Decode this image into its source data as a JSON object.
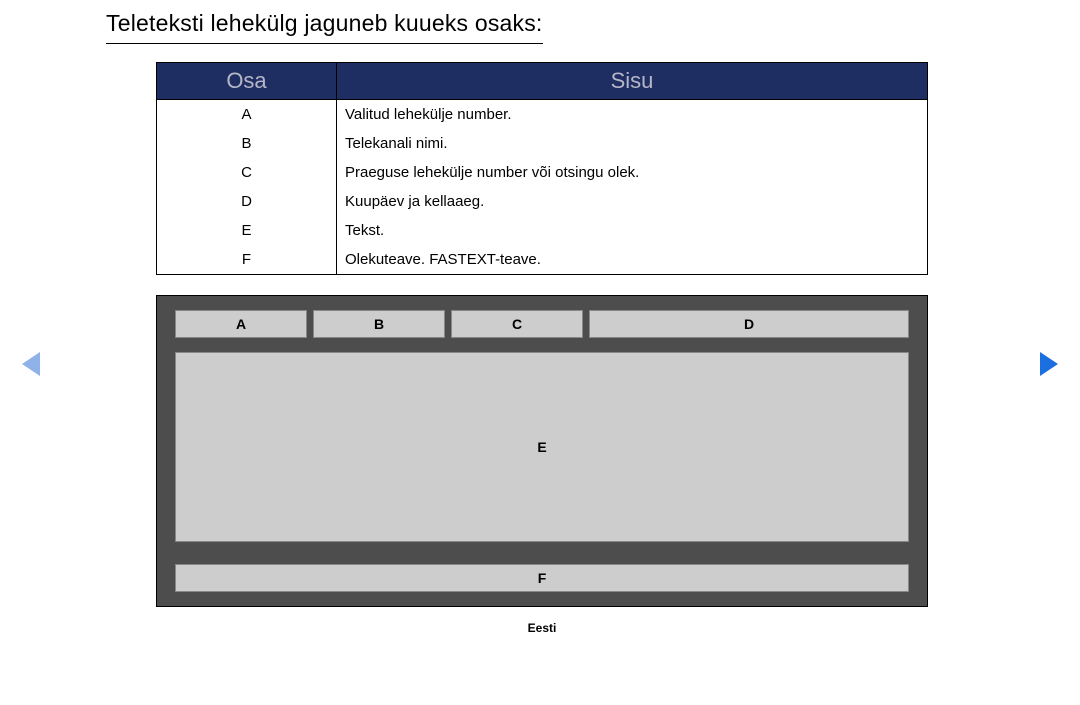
{
  "title": "Teleteksti lehekülg jaguneb kuueks osaks:",
  "table": {
    "headers": {
      "osa": "Osa",
      "sisu": "Sisu"
    },
    "header_bg": "#1f2e62",
    "header_fg": "#b6b6c7",
    "rows": [
      {
        "osa": "A",
        "sisu": "Valitud lehekülje number."
      },
      {
        "osa": "B",
        "sisu": "Telekanali nimi."
      },
      {
        "osa": "C",
        "sisu": "Praeguse lehekülje number või otsingu olek."
      },
      {
        "osa": "D",
        "sisu": "Kuupäev ja kellaaeg."
      },
      {
        "osa": "E",
        "sisu": "Tekst."
      },
      {
        "osa": "F",
        "sisu": "Olekuteave. FASTEXT-teave."
      }
    ]
  },
  "diagram": {
    "bg": "#4d4d4d",
    "cell_bg": "#cdcdcd",
    "labels": {
      "a": "A",
      "b": "B",
      "c": "C",
      "d": "D",
      "e": "E",
      "f": "F"
    }
  },
  "footer": "Eesti",
  "nav": {
    "left_color": "#8fb3e8",
    "right_color": "#1b6fe0"
  }
}
